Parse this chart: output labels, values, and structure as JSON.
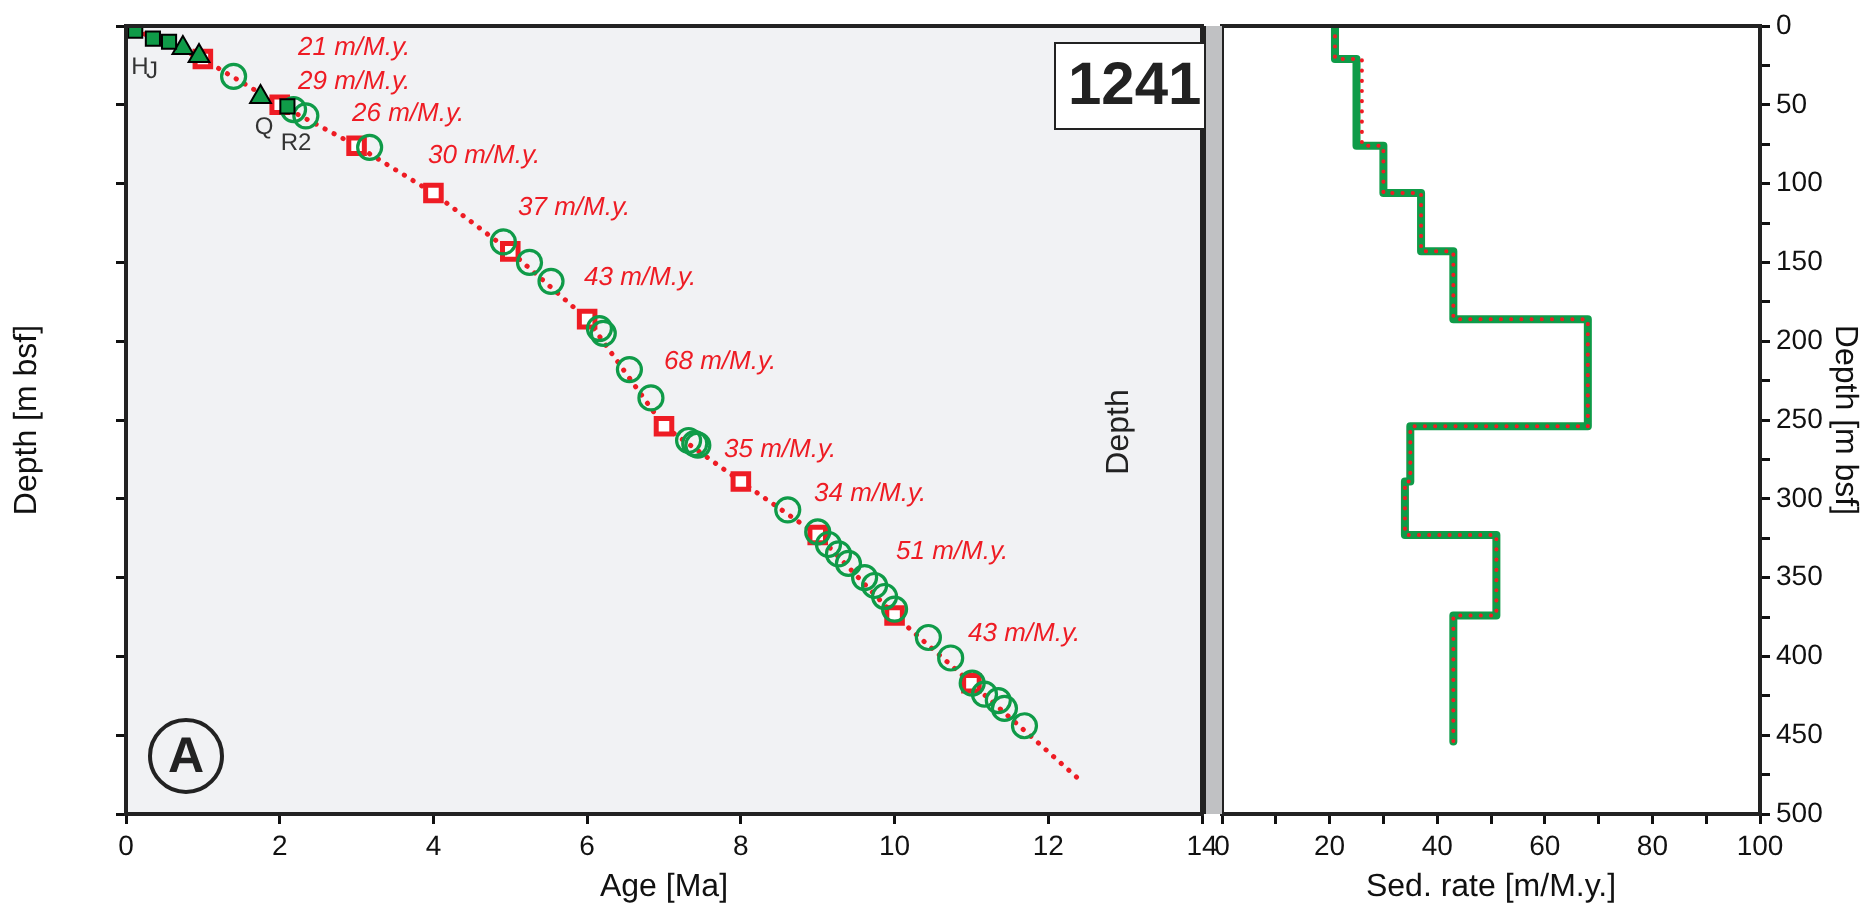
{
  "chart_data": [
    {
      "type": "scatter",
      "xlabel": "Age [Ma]",
      "ylabel": "Depth [m bsf]",
      "xlim": [
        0,
        14
      ],
      "xticks": [
        0,
        2,
        4,
        6,
        8,
        10,
        12,
        14
      ],
      "ylim": [
        500,
        0
      ],
      "yticks": [
        {
          "value": 0,
          "label": null
        },
        {
          "value": 50,
          "label": null
        },
        {
          "value": 100,
          "label": null
        },
        {
          "value": 150,
          "label": null
        },
        {
          "value": 200,
          "label": null
        },
        {
          "value": 250,
          "label": null
        },
        {
          "value": 300,
          "label": null
        },
        {
          "value": 350,
          "label": null
        },
        {
          "value": 400,
          "label": null
        },
        {
          "value": 450,
          "label": null
        },
        {
          "value": 500,
          "label": null
        }
      ],
      "tick_labels": "x",
      "annotations": [
        "A",
        "1241",
        "21 m/M.y.",
        "29 m/M.y.",
        "26 m/M.y.",
        "30 m/M.y.",
        "37 m/M.y.",
        "43 m/M.y.",
        "68 m/M.y.",
        "35 m/M.y.",
        "34 m/M.y.",
        "51 m/M.y.",
        "43 m/M.y.",
        "H",
        "J",
        "Q",
        "R2"
      ],
      "series": [
        {
          "color": "#0f9b48",
          "marker": "circle",
          "x": [
            1.4,
            2.18,
            2.34,
            3.17,
            4.91,
            5.25,
            5.53,
            6.16,
            6.21,
            6.55,
            6.83,
            7.32,
            7.4,
            7.44,
            8.61,
            9.0,
            9.14,
            9.27,
            9.4,
            9.61,
            9.74,
            9.87,
            10.0,
            10.44,
            10.73,
            11.01,
            11.17,
            11.35,
            11.43,
            11.69
          ],
          "values": [
            32,
            53,
            57,
            77,
            137,
            150,
            162,
            192,
            195,
            218,
            236,
            263,
            265,
            266,
            307,
            321,
            329,
            335,
            341,
            350,
            355,
            362,
            370,
            388,
            401,
            417,
            424,
            428,
            433,
            444
          ]
        },
        {
          "color": "#0f9b48",
          "marker": "square",
          "x": [
            0.12,
            0.35,
            0.56,
            2.1
          ],
          "values": [
            3,
            8,
            10,
            51
          ]
        },
        {
          "color": "#0f9b48",
          "marker": "triangle",
          "x": [
            0.74,
            0.95,
            1.75
          ],
          "values": [
            14,
            19,
            45
          ]
        },
        {
          "color": "#ee1c24",
          "marker": "square",
          "x": [
            1,
            2,
            3,
            4,
            5,
            6,
            7,
            8,
            9,
            10,
            11
          ],
          "values": [
            21,
            50,
            76,
            106,
            143,
            186,
            254,
            289,
            323,
            374,
            417
          ]
        },
        {
          "type": "line",
          "color": "#ee1c24",
          "marker": "none",
          "line_style": "dotted",
          "x": [
            0,
            1,
            2,
            3,
            4,
            5,
            6,
            7,
            8,
            9,
            10,
            11,
            12.4
          ],
          "values": [
            0,
            21,
            50,
            76,
            106,
            143,
            186,
            254,
            289,
            323,
            374,
            417,
            478
          ]
        }
      ]
    },
    {
      "type": "line",
      "xlabel": "Sed. rate [m/M.y.]",
      "ylabel": "Depth [m bsf]",
      "xlim": [
        0,
        100
      ],
      "xticks": [
        0,
        {
          "value": 10,
          "label": null
        },
        20,
        {
          "value": 30,
          "label": null
        },
        40,
        {
          "value": 50,
          "label": null
        },
        60,
        {
          "value": 70,
          "label": null
        },
        80,
        {
          "value": 90,
          "label": null
        },
        100
      ],
      "ylim": [
        500,
        0
      ],
      "yticks": [
        0,
        {
          "value": 25,
          "label": null
        },
        50,
        {
          "value": 75,
          "label": null
        },
        100,
        {
          "value": 125,
          "label": null
        },
        150,
        {
          "value": 175,
          "label": null
        },
        200,
        {
          "value": 225,
          "label": null
        },
        250,
        {
          "value": 275,
          "label": null
        },
        300,
        {
          "value": 325,
          "label": null
        },
        350,
        {
          "value": 375,
          "label": null
        },
        400,
        {
          "value": 425,
          "label": null
        },
        450,
        {
          "value": 475,
          "label": null
        },
        500
      ],
      "annotations": [
        "Depth"
      ],
      "series": [
        {
          "color": "#0f9b48",
          "marker": "none",
          "line_style": "solid",
          "x": [
            21,
            21,
            25,
            25,
            30,
            30,
            37,
            37,
            43,
            43,
            68,
            68,
            35,
            35,
            34,
            34,
            51,
            51,
            43,
            43
          ],
          "values": [
            0,
            21,
            21,
            76,
            76,
            106,
            106,
            143,
            143,
            186,
            186,
            254,
            254,
            289,
            289,
            323,
            323,
            374,
            374,
            454
          ]
        },
        {
          "color": "#ee1c24",
          "marker": "none",
          "line_style": "dotted",
          "x": [
            21,
            21,
            26,
            26,
            30,
            30,
            37,
            37,
            43,
            43,
            68,
            68,
            35,
            35,
            34,
            34,
            51,
            51,
            43,
            43
          ],
          "values": [
            0,
            21,
            21,
            76,
            76,
            106,
            106,
            143,
            143,
            186,
            186,
            254,
            254,
            289,
            289,
            323,
            323,
            374,
            374,
            454
          ]
        }
      ]
    }
  ]
}
